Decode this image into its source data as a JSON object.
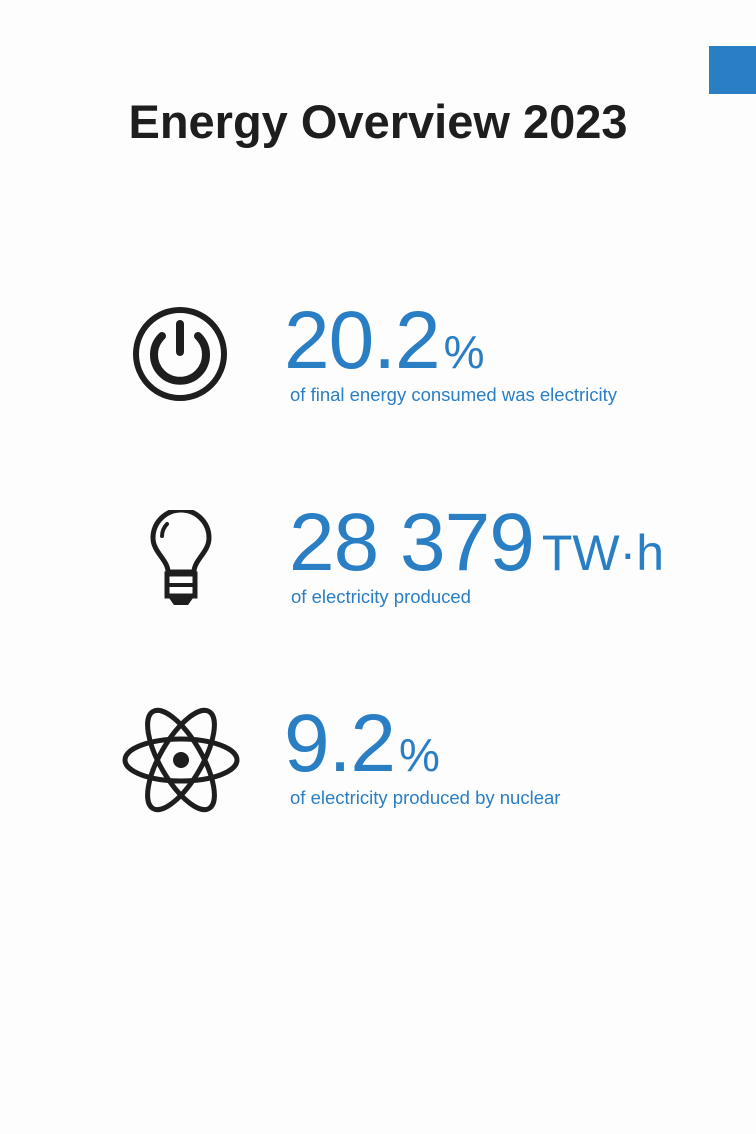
{
  "title": "Energy Overview 2023",
  "colors": {
    "accent": "#2a7ec4",
    "icon": "#1e1e1e",
    "tab": "#2a7ec4"
  },
  "stats": [
    {
      "icon": "power-icon",
      "value": "20.2",
      "unit": "%",
      "description": "of final energy consumed was electricity"
    },
    {
      "icon": "lightbulb-icon",
      "value": "28 379",
      "unit": "TW·h",
      "description": "of electricity produced"
    },
    {
      "icon": "atom-icon",
      "value": "9.2",
      "unit": "%",
      "description": "of electricity produced by nuclear"
    }
  ]
}
